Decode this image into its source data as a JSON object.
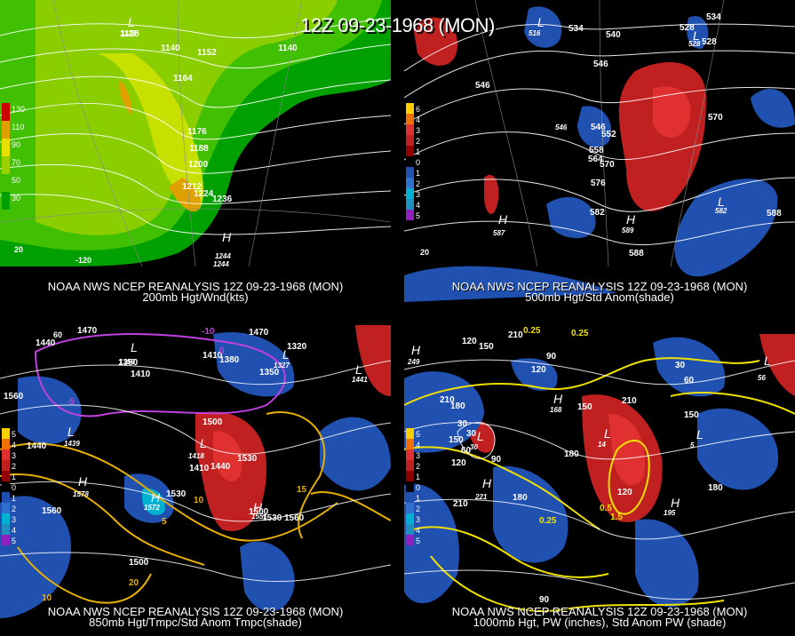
{
  "title": "12Z 09-23-1968 (MON)",
  "panels": [
    {
      "caption_line1": "NOAA NWS NCEP REANALYSIS 12Z 09-23-1968 (MON)",
      "caption_line2": "200mb Hgt/Wnd(kts)",
      "legend": [
        {
          "label": "130",
          "color": "#cc0000"
        },
        {
          "label": "110",
          "color": "#e0a000"
        },
        {
          "label": "90",
          "color": "#e8e000"
        },
        {
          "label": "70",
          "color": "#98d000"
        },
        {
          "label": "50",
          "color": "#40c000"
        },
        {
          "label": "30",
          "color": "#00a000"
        }
      ],
      "contour_labels": [
        "1140",
        "1152",
        "1164",
        "1176",
        "1188",
        "1200",
        "1212",
        "1224",
        "1236",
        "1128",
        "1140"
      ],
      "pressure_centers": [
        {
          "type": "L",
          "value": "1128"
        },
        {
          "type": "H",
          "value": "1244"
        }
      ],
      "lon_labels": [
        "-120",
        "20"
      ]
    },
    {
      "caption_line1": "NOAA NWS NCEP REANALYSIS 12Z 09-23-1968 (MON)",
      "caption_line2": "500mb Hgt/Std Anom(shade)",
      "legend": [
        {
          "label": "6",
          "color": "#f8d000"
        },
        {
          "label": "4",
          "color": "#f07000"
        },
        {
          "label": "3",
          "color": "#e03030"
        },
        {
          "label": "2",
          "color": "#c02020"
        },
        {
          "label": "1",
          "color": "#900000"
        },
        {
          "label": "0",
          "color": "#000000"
        },
        {
          "label": "1",
          "color": "#2050b0"
        },
        {
          "label": "2",
          "color": "#3070d0"
        },
        {
          "label": "3",
          "color": "#00b0d0"
        },
        {
          "label": "4",
          "color": "#2090c0"
        },
        {
          "label": "5",
          "color": "#9020c0"
        }
      ],
      "contour_labels": [
        "534",
        "540",
        "546",
        "528",
        "534",
        "528",
        "546",
        "570",
        "558",
        "564",
        "552",
        "546",
        "570",
        "576",
        "582",
        "588",
        "588"
      ],
      "pressure_centers": [
        {
          "type": "L",
          "value": "516"
        },
        {
          "type": "L",
          "value": "528"
        },
        {
          "type": "L",
          "value": "546"
        },
        {
          "type": "H",
          "value": "587"
        },
        {
          "type": "H",
          "value": "589"
        },
        {
          "type": "L",
          "value": "582"
        }
      ],
      "lon_labels": [
        "20"
      ]
    },
    {
      "caption_line1": "NOAA NWS NCEP REANALYSIS 12Z 09-23-1968 (MON)",
      "caption_line2": "850mb Hgt/Tmpc/Std Anom Tmpc(shade)",
      "legend": [
        {
          "label": "5",
          "color": "#f8d000"
        },
        {
          "label": "4",
          "color": "#f07000"
        },
        {
          "label": "3",
          "color": "#e03030"
        },
        {
          "label": "2",
          "color": "#c02020"
        },
        {
          "label": "1",
          "color": "#900000"
        },
        {
          "label": "0",
          "color": "#000000"
        },
        {
          "label": "1",
          "color": "#2050b0"
        },
        {
          "label": "2",
          "color": "#3070d0"
        },
        {
          "label": "3",
          "color": "#00b0d0"
        },
        {
          "label": "4",
          "color": "#2090c0"
        },
        {
          "label": "5",
          "color": "#9020c0"
        }
      ],
      "contour_labels": [
        "1440",
        "1470",
        "1380",
        "1410",
        "1410",
        "1380",
        "1350",
        "1320",
        "1470",
        "1560",
        "1440",
        "1500",
        "1410",
        "1440",
        "1530",
        "1560",
        "1500",
        "1560",
        "1530",
        "1560",
        "1500",
        "15",
        "10",
        "5",
        "20",
        "10",
        "0",
        "-10",
        "-5"
      ],
      "pressure_centers": [
        {
          "type": "L",
          "value": "1359"
        },
        {
          "type": "L",
          "value": "1327"
        },
        {
          "type": "L",
          "value": "1441"
        },
        {
          "type": "L",
          "value": "1439"
        },
        {
          "type": "H",
          "value": "1578"
        },
        {
          "type": "H",
          "value": "1572"
        },
        {
          "type": "L",
          "value": "1418"
        },
        {
          "type": "H",
          "value": "1551"
        }
      ],
      "lon_labels": [
        "60"
      ]
    },
    {
      "caption_line1": "NOAA NWS NCEP REANALYSIS 12Z 09-23-1968 (MON)",
      "caption_line2": "1000mb Hgt, PW (inches), Std Anom PW (shade)",
      "legend": [
        {
          "label": "5",
          "color": "#f8d000"
        },
        {
          "label": "4",
          "color": "#f07000"
        },
        {
          "label": "3",
          "color": "#e03030"
        },
        {
          "label": "2",
          "color": "#c02020"
        },
        {
          "label": "1",
          "color": "#900000"
        },
        {
          "label": "0",
          "color": "#000000"
        },
        {
          "label": "1",
          "color": "#2050b0"
        },
        {
          "label": "2",
          "color": "#3070d0"
        },
        {
          "label": "3",
          "color": "#00b0d0"
        },
        {
          "label": "4",
          "color": "#2090c0"
        },
        {
          "label": "5",
          "color": "#9020c0"
        }
      ],
      "contour_labels": [
        "120",
        "150",
        "180",
        "210",
        "0.25",
        "0.25",
        "120",
        "90",
        "30",
        "60",
        "30",
        "210",
        "180",
        "150",
        "120",
        "60",
        "30",
        "150",
        "210",
        "180",
        "150",
        "180",
        "90",
        "0.25",
        "1.5",
        "0.5",
        "120",
        "210",
        "180",
        "90"
      ],
      "pressure_centers": [
        {
          "type": "H",
          "value": "249"
        },
        {
          "type": "L",
          "value": "56"
        },
        {
          "type": "H",
          "value": "168"
        },
        {
          "type": "L",
          "value": "30"
        },
        {
          "type": "H",
          "value": "221"
        },
        {
          "type": "L",
          "value": "14"
        },
        {
          "type": "H",
          "value": "195"
        },
        {
          "type": "L",
          "value": "5"
        }
      ],
      "lon_labels": []
    }
  ]
}
